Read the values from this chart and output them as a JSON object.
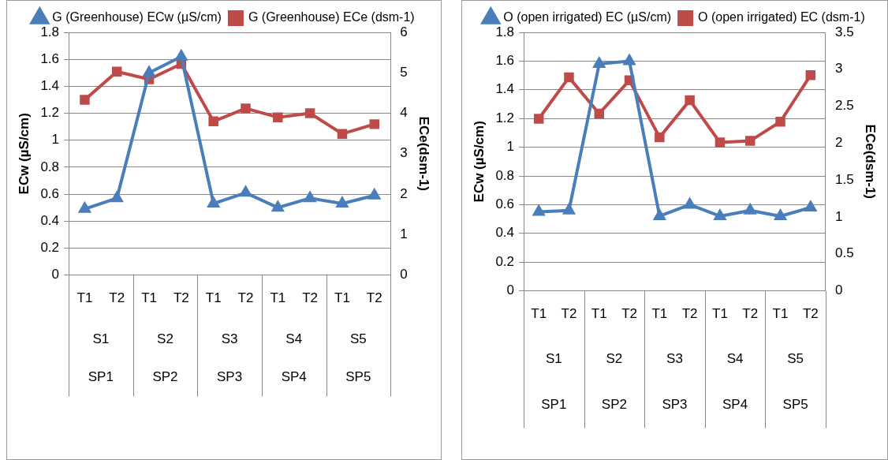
{
  "chart_data": [
    {
      "type": "line",
      "categories": [
        "T1",
        "T2",
        "T1",
        "T2",
        "T1",
        "T2",
        "T1",
        "T2",
        "T1",
        "T2"
      ],
      "ylabel": "ECw (µS/cm)",
      "y2label": "ECe(dsm-1)",
      "ylim": [
        0,
        1.8
      ],
      "yticks": [
        0,
        0.2,
        0.4,
        0.6,
        0.8,
        1,
        1.2,
        1.4,
        1.6,
        1.8
      ],
      "y2lim": [
        0,
        6
      ],
      "y2ticks": [
        0,
        1,
        2,
        3,
        4,
        5,
        6
      ],
      "grid": "y",
      "legend": "top",
      "line_style": "solid",
      "annotations": [
        "S1",
        "S2",
        "S3",
        "S4",
        "S5",
        "SP1",
        "SP2",
        "SP3",
        "SP4",
        "SP5"
      ],
      "series": [
        {
          "name": "G (Greenhouse) ECw (µS/cm)",
          "color": "#4a7ebb",
          "marker": "triangle",
          "values": [
            0.49,
            0.57,
            1.5,
            1.62,
            0.53,
            0.61,
            0.5,
            0.57,
            0.53,
            0.59
          ]
        },
        {
          "name": "G (Greenhouse) ECe (dsm-1)",
          "color": "#be4b48",
          "marker": "square",
          "axis": "y2",
          "values": [
            4.33,
            5.03,
            4.84,
            5.22,
            3.8,
            4.12,
            3.9,
            4.0,
            3.49,
            3.73
          ]
        }
      ]
    },
    {
      "type": "line",
      "categories": [
        "T1",
        "T2",
        "T1",
        "T2",
        "T1",
        "T2",
        "T1",
        "T2",
        "T1",
        "T2"
      ],
      "ylabel": "ECw (µS/cm)",
      "y2label": "ECe(dsm-1)",
      "ylim": [
        0,
        1.8
      ],
      "yticks": [
        0,
        0.2,
        0.4,
        0.6,
        0.8,
        1,
        1.2,
        1.4,
        1.6,
        1.8
      ],
      "y2lim": [
        0,
        3.5
      ],
      "y2ticks": [
        0,
        0.5,
        1,
        1.5,
        2,
        2.5,
        3,
        3.5
      ],
      "grid": "y",
      "legend": "top",
      "line_style": "solid",
      "annotations": [
        "S1",
        "S2",
        "S3",
        "S4",
        "S5",
        "SP1",
        "SP2",
        "SP3",
        "SP4",
        "SP5"
      ],
      "series": [
        {
          "name": "O (open irrigated) EC (µS/cm)",
          "color": "#4a7ebb",
          "marker": "triangle",
          "values": [
            0.55,
            0.56,
            1.58,
            1.6,
            0.52,
            0.6,
            0.52,
            0.56,
            0.52,
            0.58
          ]
        },
        {
          "name": "O (open irrigated) EC (dsm-1)",
          "color": "#be4b48",
          "marker": "square",
          "axis": "y2",
          "values": [
            2.33,
            2.89,
            2.4,
            2.85,
            2.08,
            2.58,
            2.01,
            2.03,
            2.29,
            2.92
          ]
        }
      ]
    }
  ]
}
